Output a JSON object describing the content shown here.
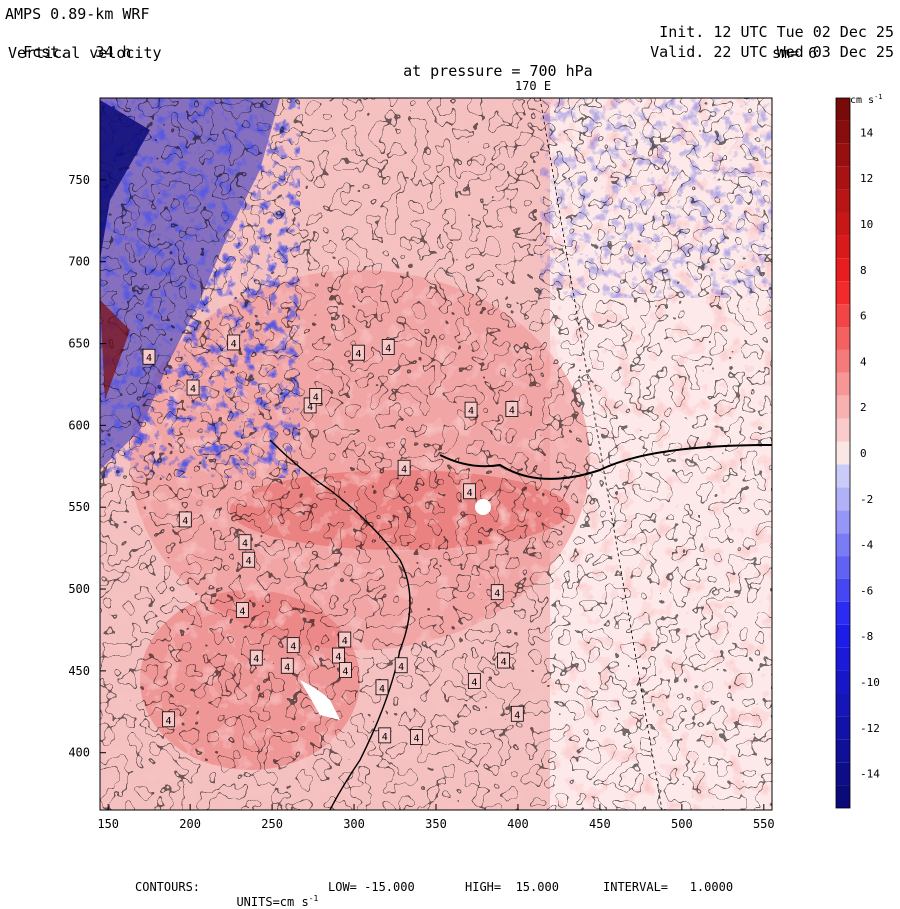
{
  "header": {
    "model": "AMPS 0.89-km WRF",
    "fcst_label": "Fcst.",
    "fcst_value": "34 h",
    "field": "Vertical velocity",
    "pressure_label": "at pressure =",
    "pressure_value": "700 hPa",
    "init_label": "Init.",
    "init_value": "12 UTC Tue 02 Dec 25",
    "valid_label": "Valid.",
    "valid_value": "22 UTC Wed 03 Dec 25",
    "smooth": "sm= 6",
    "meridian_label": "170 E"
  },
  "footer": {
    "contours": "CONTOURS:",
    "units_label": "UNITS=cm s",
    "units_exp": "-1",
    "low": "LOW= -15.000",
    "high": "HIGH=  15.000",
    "interval": "INTERVAL=   1.0000"
  },
  "colorbar": {
    "unit": "cm s",
    "unit_exp": "-1",
    "levels": [
      -15,
      -14,
      -13,
      -12,
      -11,
      -10,
      -9,
      -8,
      -7,
      -6,
      -5,
      -4,
      -3,
      -2,
      -1,
      0,
      1,
      2,
      3,
      4,
      5,
      6,
      7,
      8,
      9,
      10,
      11,
      12,
      13,
      14,
      15
    ],
    "tick_labels": [
      "14",
      "12",
      "10",
      "8",
      "6",
      "4",
      "2",
      "0",
      "-2",
      "-4",
      "-6",
      "-8",
      "-10",
      "-12",
      "-14"
    ],
    "colors": {
      "negative_max": "#0a0a78",
      "negative_bright": "#1e1ef0",
      "negative_light": "#e6e6fa",
      "positive_light": "#fbe6e6",
      "positive_bright": "#f01e1e",
      "positive_max": "#780a0a"
    }
  },
  "chart_data": {
    "type": "heatmap",
    "title": "Vertical velocity",
    "xlim": [
      145,
      555
    ],
    "ylim": [
      365,
      800
    ],
    "x_ticks": [
      150,
      200,
      250,
      300,
      350,
      400,
      450,
      500,
      550
    ],
    "y_ticks": [
      400,
      450,
      500,
      550,
      600,
      650,
      700,
      750
    ],
    "contour_label": "4",
    "contour_label_count": 30,
    "units": "cm s-1",
    "low": -15,
    "high": 15,
    "interval": 1
  }
}
